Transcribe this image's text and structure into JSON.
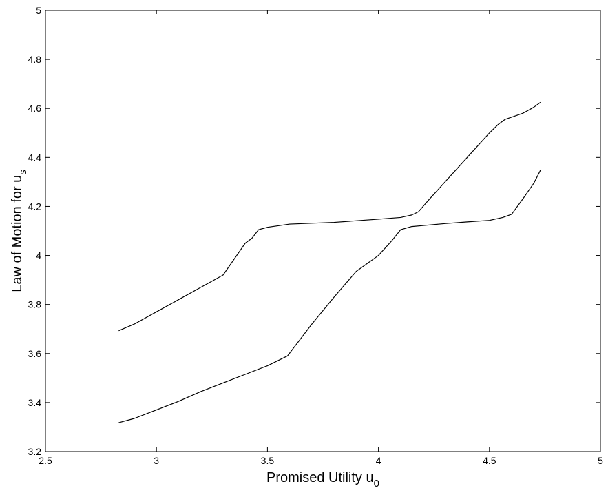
{
  "chart_data": {
    "type": "line",
    "title": "",
    "xlabel": "Promised Utility u",
    "xlabel_sub": "0",
    "ylabel": "Law of Motion for u",
    "ylabel_sub": "s",
    "xlim": [
      2.5,
      5
    ],
    "ylim": [
      3.2,
      5
    ],
    "xticks": [
      "2.5",
      "3",
      "3.5",
      "4",
      "4.5",
      "5"
    ],
    "yticks": [
      "3.2",
      "3.4",
      "3.6",
      "3.8",
      "4",
      "4.2",
      "4.4",
      "4.6",
      "4.8",
      "5"
    ],
    "grid": false,
    "series": [
      {
        "points": [
          [
            2.83,
            3.693
          ],
          [
            2.9,
            3.72
          ],
          [
            3.0,
            3.77
          ],
          [
            3.1,
            3.82
          ],
          [
            3.2,
            3.87
          ],
          [
            3.3,
            3.92
          ],
          [
            3.4,
            4.05
          ],
          [
            3.43,
            4.07
          ],
          [
            3.46,
            4.105
          ],
          [
            3.5,
            4.115
          ],
          [
            3.6,
            4.128
          ],
          [
            3.8,
            4.135
          ],
          [
            4.0,
            4.148
          ],
          [
            4.1,
            4.155
          ],
          [
            4.15,
            4.165
          ],
          [
            4.18,
            4.178
          ],
          [
            4.22,
            4.22
          ],
          [
            4.3,
            4.3
          ],
          [
            4.4,
            4.4
          ],
          [
            4.5,
            4.5
          ],
          [
            4.54,
            4.535
          ],
          [
            4.57,
            4.555
          ],
          [
            4.65,
            4.58
          ],
          [
            4.7,
            4.605
          ],
          [
            4.73,
            4.625
          ]
        ]
      },
      {
        "points": [
          [
            2.83,
            3.318
          ],
          [
            2.9,
            3.335
          ],
          [
            3.0,
            3.37
          ],
          [
            3.1,
            3.405
          ],
          [
            3.2,
            3.445
          ],
          [
            3.3,
            3.48
          ],
          [
            3.4,
            3.515
          ],
          [
            3.5,
            3.55
          ],
          [
            3.59,
            3.59
          ],
          [
            3.7,
            3.72
          ],
          [
            3.8,
            3.83
          ],
          [
            3.9,
            3.935
          ],
          [
            4.0,
            4.0
          ],
          [
            4.06,
            4.06
          ],
          [
            4.1,
            4.105
          ],
          [
            4.15,
            4.118
          ],
          [
            4.2,
            4.122
          ],
          [
            4.3,
            4.13
          ],
          [
            4.4,
            4.137
          ],
          [
            4.5,
            4.143
          ],
          [
            4.56,
            4.155
          ],
          [
            4.6,
            4.168
          ],
          [
            4.65,
            4.23
          ],
          [
            4.7,
            4.295
          ],
          [
            4.73,
            4.348
          ]
        ]
      }
    ]
  }
}
